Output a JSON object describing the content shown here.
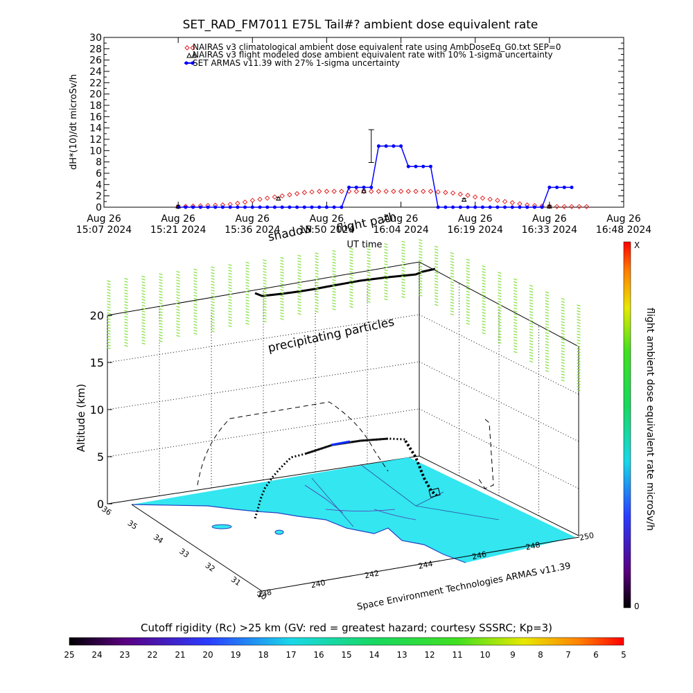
{
  "top_chart": {
    "title": "SET_RAD_FM7011  E75L Tail#? ambient dose equivalent rate",
    "ylabel": "dH*(10)/dt microSv/h",
    "xlabel": "UT time",
    "ylim": [
      0,
      30
    ],
    "yticks": [
      0,
      2,
      4,
      6,
      8,
      10,
      12,
      14,
      16,
      18,
      20,
      22,
      24,
      26,
      28,
      30
    ],
    "xlim": [
      0,
      7
    ],
    "xticks": [
      {
        "line1": "Aug 26",
        "line2": "15:07 2024"
      },
      {
        "line1": "Aug 26",
        "line2": "15:21 2024"
      },
      {
        "line1": "Aug 26",
        "line2": "15:36 2024"
      },
      {
        "line1": "Aug 26",
        "line2": "15:50 2024"
      },
      {
        "line1": "Aug 26",
        "line2": "16:04 2024"
      },
      {
        "line1": "Aug 26",
        "line2": "16:19 2024"
      },
      {
        "line1": "Aug 26",
        "line2": "16:33 2024"
      },
      {
        "line1": "Aug 26",
        "line2": "16:48 2024"
      }
    ],
    "legend": [
      {
        "label": "NAIRAS v3 climatological ambient dose equivalent rate using AmbDoseEq_G0.txt SEP=0",
        "color": "#e02020"
      },
      {
        "label": "NAIRAS v3 flight modeled dose ambient equivalent rate with 10% 1-sigma uncertainty",
        "color": "#000000"
      },
      {
        "label": "SET ARMAS v11.39 with 27% 1-sigma uncertainty",
        "color": "#0000ff"
      }
    ]
  },
  "chart_data": {
    "type": "line",
    "title": "SET_RAD_FM7011  E75L Tail#? ambient dose equivalent rate",
    "xlabel": "UT time",
    "ylabel": "dH*(10)/dt microSv/h",
    "ylim": [
      0,
      30
    ],
    "x_ticks": [
      "15:07",
      "15:21",
      "15:36",
      "15:50",
      "16:04",
      "16:19",
      "16:33",
      "16:48"
    ],
    "series": [
      {
        "name": "NAIRAS v3 climatological ambient dose equivalent rate using AmbDoseEq_G0.txt SEP=0",
        "x": [
          1.0,
          1.1,
          1.2,
          1.3,
          1.4,
          1.5,
          1.6,
          1.7,
          1.8,
          1.9,
          2.0,
          2.1,
          2.2,
          2.3,
          2.4,
          2.5,
          2.6,
          2.7,
          2.8,
          2.9,
          3.0,
          3.1,
          3.2,
          3.3,
          3.4,
          3.5,
          3.6,
          3.7,
          3.8,
          3.9,
          4.0,
          4.1,
          4.2,
          4.3,
          4.4,
          4.5,
          4.6,
          4.7,
          4.8,
          4.9,
          5.0,
          5.1,
          5.2,
          5.3,
          5.4,
          5.5,
          5.6,
          5.7,
          5.8,
          5.9,
          6.0,
          6.1,
          6.2,
          6.3,
          6.4,
          6.5
        ],
        "values": [
          0.1,
          0.15,
          0.2,
          0.25,
          0.3,
          0.35,
          0.4,
          0.5,
          0.7,
          0.9,
          1.2,
          1.4,
          1.6,
          1.8,
          2.0,
          2.2,
          2.4,
          2.6,
          2.7,
          2.8,
          2.8,
          2.8,
          2.8,
          2.8,
          2.8,
          2.8,
          2.8,
          2.8,
          2.8,
          2.8,
          2.8,
          2.8,
          2.8,
          2.8,
          2.8,
          2.7,
          2.6,
          2.5,
          2.3,
          2.1,
          1.8,
          1.6,
          1.4,
          1.2,
          1.0,
          0.8,
          0.6,
          0.4,
          0.3,
          0.2,
          0.15,
          0.1,
          0.1,
          0.1,
          0.1,
          0.1
        ]
      },
      {
        "name": "NAIRAS v3 flight modeled dose ambient equivalent rate with 10% 1-sigma uncertainty",
        "x": [
          1.0,
          2.35,
          3.5,
          4.85,
          6.0
        ],
        "values": [
          0.1,
          1.5,
          2.8,
          1.3,
          0.1
        ]
      },
      {
        "name": "SET ARMAS v11.39 with 27% 1-sigma uncertainty",
        "x": [
          1.0,
          1.1,
          1.2,
          1.3,
          1.4,
          1.5,
          1.6,
          1.7,
          1.8,
          1.9,
          2.0,
          2.1,
          2.2,
          2.3,
          2.4,
          2.5,
          2.6,
          2.7,
          2.8,
          2.9,
          3.0,
          3.1,
          3.2,
          3.3,
          3.4,
          3.5,
          3.6,
          3.7,
          3.8,
          3.9,
          4.0,
          4.1,
          4.2,
          4.3,
          4.4,
          4.5,
          4.6,
          4.7,
          4.8,
          4.9,
          5.0,
          5.1,
          5.2,
          5.3,
          5.4,
          5.5,
          5.6,
          5.7,
          5.8,
          5.9,
          6.0,
          6.1,
          6.2,
          6.3
        ],
        "values": [
          0,
          0,
          0,
          0,
          0,
          0,
          0,
          0,
          0,
          0,
          0,
          0,
          0,
          0,
          0,
          0,
          0,
          0,
          0,
          0,
          0,
          0,
          0,
          3.5,
          3.5,
          3.5,
          3.5,
          10.8,
          10.8,
          10.8,
          10.8,
          7.2,
          7.2,
          7.2,
          7.2,
          0,
          0,
          0,
          0,
          0,
          0,
          0,
          0,
          0,
          0,
          0,
          0,
          0,
          0,
          0,
          3.5,
          3.5,
          3.5,
          3.5
        ],
        "error_bar": {
          "x": 3.6,
          "value": 10.8,
          "err": 2.9
        }
      }
    ]
  },
  "scene": {
    "annotations": {
      "shadow": "shadow",
      "flight_path": "flight path",
      "precipitating": "precipitating particles",
      "credit": "Space Environment Technologies ARMAS v11.39"
    },
    "altitude_label": "Altitude (km)",
    "alt_ticks": [
      "0",
      "5",
      "10",
      "15",
      "20"
    ],
    "lat_ticks": [
      "30",
      "31",
      "32",
      "33",
      "34",
      "35",
      "36"
    ],
    "lon_ticks": [
      "238",
      "240",
      "242",
      "244",
      "246",
      "248",
      "250"
    ],
    "ground_color": "#33e6f0",
    "particle_color": "#7fe03a"
  },
  "dose_colorbar": {
    "label": "flight ambient dose equivalent rate microSv/h",
    "top_label": "X",
    "bottom_label": "0"
  },
  "rc_colorbar": {
    "title": "Cutoff rigidity (Rc) >25 km (GV: red = greatest hazard; courtesy SSSRC; Kp=3)",
    "ticks": [
      "25",
      "24",
      "23",
      "22",
      "21",
      "20",
      "19",
      "18",
      "17",
      "16",
      "15",
      "14",
      "13",
      "12",
      "11",
      "10",
      "9",
      "8",
      "7",
      "6",
      "5"
    ]
  }
}
